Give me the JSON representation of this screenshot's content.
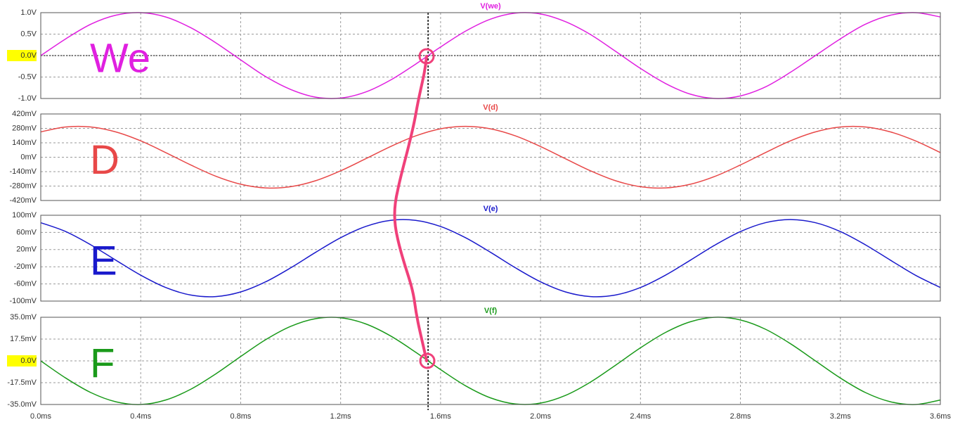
{
  "chart_data": [
    {
      "type": "line",
      "title": "V(we)",
      "annotation": "We",
      "color": "#e020e0",
      "highlighted_ytick": 2,
      "cursor_x": 1.55,
      "cursor_y": 0,
      "x": [
        0,
        0.1,
        0.2,
        0.3,
        0.4,
        0.5,
        0.6,
        0.7,
        0.8,
        0.9,
        1.0,
        1.1,
        1.2,
        1.3,
        1.4,
        1.5,
        1.6,
        1.7,
        1.8,
        1.9,
        2.0,
        2.1,
        2.2,
        2.3,
        2.4,
        2.5,
        2.6,
        2.7,
        2.8,
        2.9,
        3.0,
        3.1,
        3.2,
        3.3,
        3.4,
        3.5,
        3.6
      ],
      "values": [
        0,
        0.39,
        0.73,
        0.94,
        1.0,
        0.9,
        0.65,
        0.3,
        -0.1,
        -0.49,
        -0.79,
        -0.97,
        -0.99,
        -0.85,
        -0.57,
        -0.2,
        0.2,
        0.57,
        0.85,
        0.99,
        0.97,
        0.79,
        0.49,
        0.1,
        -0.3,
        -0.65,
        -0.9,
        -1.0,
        -0.94,
        -0.73,
        -0.39,
        0,
        0.39,
        0.73,
        0.94,
        1.0,
        0.9
      ],
      "xlim": [
        0,
        3.6
      ],
      "xticks": [
        0,
        0.4,
        0.8,
        1.2,
        1.6,
        2.0,
        2.4,
        2.8,
        3.2,
        3.6
      ],
      "ylim": [
        -1,
        1
      ],
      "yticks": [
        {
          "value": 1,
          "label": "1.0V"
        },
        {
          "value": 0.5,
          "label": "0.5V"
        },
        {
          "value": 0,
          "label": "0.0V"
        },
        {
          "value": -0.5,
          "label": "-0.5V"
        },
        {
          "value": -1,
          "label": "-1.0V"
        }
      ],
      "grid": true
    },
    {
      "type": "line",
      "title": "V(d)",
      "annotation": "D",
      "color": "#e84848",
      "x": [
        0,
        0.1,
        0.2,
        0.3,
        0.4,
        0.5,
        0.6,
        0.7,
        0.8,
        0.9,
        1.0,
        1.1,
        1.2,
        1.3,
        1.4,
        1.5,
        1.6,
        1.7,
        1.8,
        1.9,
        2.0,
        2.1,
        2.2,
        2.3,
        2.4,
        2.5,
        2.6,
        2.7,
        2.8,
        2.9,
        3.0,
        3.1,
        3.2,
        3.3,
        3.4,
        3.5,
        3.6
      ],
      "values": [
        246,
        294,
        294,
        246,
        159,
        45,
        -75,
        -184,
        -262,
        -298,
        -286,
        -228,
        -132,
        -15,
        104,
        207,
        276,
        300,
        276,
        207,
        104,
        -15,
        -132,
        -228,
        -286,
        -298,
        -262,
        -184,
        -75,
        45,
        159,
        246,
        294,
        294,
        246,
        159,
        45
      ],
      "xlim": [
        0,
        3.6
      ],
      "xticks": [
        0,
        0.4,
        0.8,
        1.2,
        1.6,
        2.0,
        2.4,
        2.8,
        3.2,
        3.6
      ],
      "ylim": [
        -420,
        420
      ],
      "yticks": [
        {
          "value": 420,
          "label": "420mV"
        },
        {
          "value": 280,
          "label": "280mV"
        },
        {
          "value": 140,
          "label": "140mV"
        },
        {
          "value": 0,
          "label": "0mV"
        },
        {
          "value": -140,
          "label": "-140mV"
        },
        {
          "value": -280,
          "label": "-280mV"
        },
        {
          "value": -420,
          "label": "-420mV"
        }
      ],
      "grid": true
    },
    {
      "type": "line",
      "title": "V(e)",
      "annotation": "E",
      "color": "#1a1acc",
      "x": [
        0,
        0.1,
        0.2,
        0.3,
        0.4,
        0.5,
        0.6,
        0.7,
        0.8,
        0.9,
        1.0,
        1.1,
        1.2,
        1.3,
        1.4,
        1.5,
        1.6,
        1.7,
        1.8,
        1.9,
        2.0,
        2.1,
        2.2,
        2.3,
        2.4,
        2.5,
        2.6,
        2.7,
        2.8,
        2.9,
        3.0,
        3.1,
        3.2,
        3.3,
        3.4,
        3.5,
        3.6
      ],
      "values": [
        82.7,
        62.0,
        31.2,
        -4.6,
        -39.6,
        -68.3,
        -85.9,
        -89.5,
        -78.7,
        -55.1,
        -22.6,
        13.6,
        47.6,
        73.9,
        88.2,
        88.2,
        73.9,
        47.6,
        13.6,
        -22.6,
        -55.1,
        -78.7,
        -89.5,
        -85.9,
        -68.3,
        -39.6,
        -4.6,
        31.2,
        62.0,
        82.7,
        90,
        82.7,
        62.0,
        31.2,
        -4.6,
        -39.6,
        -68.3
      ],
      "xlim": [
        0,
        3.6
      ],
      "xticks": [
        0,
        0.4,
        0.8,
        1.2,
        1.6,
        2.0,
        2.4,
        2.8,
        3.2,
        3.6
      ],
      "ylim": [
        -100,
        100
      ],
      "yticks": [
        {
          "value": 100,
          "label": "100mV"
        },
        {
          "value": 60,
          "label": "60mV"
        },
        {
          "value": 20,
          "label": "20mV"
        },
        {
          "value": -20,
          "label": "-20mV"
        },
        {
          "value": -60,
          "label": "-60mV"
        },
        {
          "value": -100,
          "label": "-100mV"
        }
      ],
      "grid": true
    },
    {
      "type": "line",
      "title": "V(f)",
      "annotation": "F",
      "color": "#1a9a1a",
      "highlighted_ytick": 2,
      "cursor_x": 1.55,
      "x": [
        0,
        0.1,
        0.2,
        0.3,
        0.4,
        0.5,
        0.6,
        0.7,
        0.8,
        0.9,
        1.0,
        1.1,
        1.2,
        1.3,
        1.4,
        1.5,
        1.6,
        1.7,
        1.8,
        1.9,
        2.0,
        2.1,
        2.2,
        2.3,
        2.4,
        2.5,
        2.6,
        2.7,
        2.8,
        2.9,
        3.0,
        3.1,
        3.2,
        3.3,
        3.4,
        3.5,
        3.6
      ],
      "values": [
        0,
        -13.8,
        -25.4,
        -32.8,
        -35.0,
        -31.4,
        -22.8,
        -10.5,
        3.5,
        17.0,
        27.7,
        33.9,
        34.6,
        29.7,
        20.0,
        7.0,
        -7.0,
        -20.0,
        -29.7,
        -34.6,
        -33.9,
        -27.7,
        -17.0,
        -3.5,
        10.5,
        22.8,
        31.4,
        35.0,
        32.8,
        25.4,
        13.8,
        0,
        -13.8,
        -25.4,
        -32.8,
        -35.0,
        -31.4
      ],
      "xlim": [
        0,
        3.6
      ],
      "xticks": [
        {
          "value": 0,
          "label": "0.0ms"
        },
        {
          "value": 0.4,
          "label": "0.4ms"
        },
        {
          "value": 0.8,
          "label": "0.8ms"
        },
        {
          "value": 1.2,
          "label": "1.2ms"
        },
        {
          "value": 1.6,
          "label": "1.6ms"
        },
        {
          "value": 2.0,
          "label": "2.0ms"
        },
        {
          "value": 2.4,
          "label": "2.4ms"
        },
        {
          "value": 2.8,
          "label": "2.8ms"
        },
        {
          "value": 3.2,
          "label": "3.2ms"
        },
        {
          "value": 3.6,
          "label": "3.6ms"
        }
      ],
      "ylim": [
        -35,
        35
      ],
      "yticks": [
        {
          "value": 35,
          "label": "35.0mV"
        },
        {
          "value": 17.5,
          "label": "17.5mV"
        },
        {
          "value": 0,
          "label": "0.0V"
        },
        {
          "value": -17.5,
          "label": "-17.5mV"
        },
        {
          "value": -35,
          "label": "-35.0mV"
        }
      ],
      "grid": true
    }
  ]
}
